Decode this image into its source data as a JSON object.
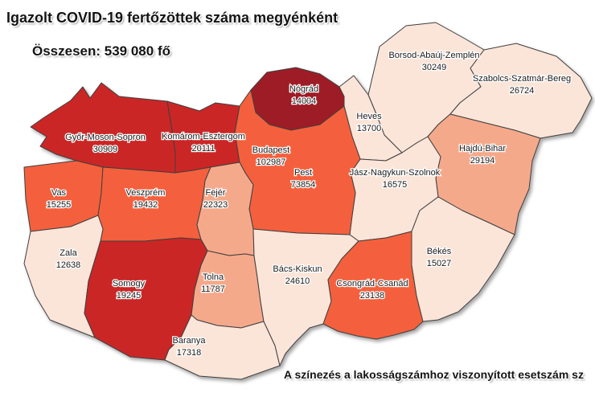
{
  "header": {
    "title": "Igazolt COVID-19 fertőzöttek száma megyénként",
    "subtitle": "Összesen: 539 080 fő"
  },
  "footnote": "A színezés a lakosságszámhoz viszonyított esetszám sz",
  "palette": {
    "level1": "#fbe4d8",
    "level2": "#f5a98b",
    "level3": "#f4603c",
    "level4": "#cb2527",
    "level5": "#9e1b26",
    "border": "#3f3f3f",
    "background": "#ffffff",
    "label_color": "#1a1a1a"
  },
  "counties": [
    {
      "id": "gyor-moson-sopron",
      "name": "Győr-Moson-Sopron",
      "value": "30909",
      "level": 4
    },
    {
      "id": "komarom-esztergom",
      "name": "Komárom-Esztergom",
      "value": "20111",
      "level": 4
    },
    {
      "id": "nograd",
      "name": "Nógrád",
      "value": "14004",
      "level": 5
    },
    {
      "id": "borsod-abauj-zemplen",
      "name": "Borsod-Abaúj-Zemplén",
      "value": "30249",
      "level": 1
    },
    {
      "id": "szabolcs-szatmar-bereg",
      "name": "Szabolcs-Szatmár-Bereg",
      "value": "26724",
      "level": 1
    },
    {
      "id": "heves",
      "name": "Heves",
      "value": "13700",
      "level": 1
    },
    {
      "id": "hajdu-bihar",
      "name": "Hajdú-Bihar",
      "value": "29194",
      "level": 2
    },
    {
      "id": "jasz-nagykun-szolnok",
      "name": "Jász-Nagykun-Szolnok",
      "value": "16575",
      "level": 1
    },
    {
      "id": "budapest",
      "name": "Budapest",
      "value": "102987",
      "level": 3
    },
    {
      "id": "pest",
      "name": "Pest",
      "value": "73854",
      "level": 3
    },
    {
      "id": "vas",
      "name": "Vas",
      "value": "15255",
      "level": 3
    },
    {
      "id": "veszprem",
      "name": "Veszprém",
      "value": "19432",
      "level": 3
    },
    {
      "id": "fejer",
      "name": "Fejér",
      "value": "22323",
      "level": 2
    },
    {
      "id": "zala",
      "name": "Zala",
      "value": "12638",
      "level": 1
    },
    {
      "id": "somogy",
      "name": "Somogy",
      "value": "19245",
      "level": 4
    },
    {
      "id": "tolna",
      "name": "Tolna",
      "value": "11787",
      "level": 2
    },
    {
      "id": "baranya",
      "name": "Baranya",
      "value": "17318",
      "level": 1
    },
    {
      "id": "bacs-kiskun",
      "name": "Bács-Kiskun",
      "value": "24610",
      "level": 1
    },
    {
      "id": "csongrad-csanad",
      "name": "Csongrád-Csanád",
      "value": "23138",
      "level": 3
    },
    {
      "id": "bekes",
      "name": "Békés",
      "value": "15027",
      "level": 1
    }
  ],
  "chart_data": {
    "type": "choropleth_map",
    "title": "Igazolt COVID-19 fertőzöttek száma megyénként",
    "total_label": "Összesen: 539 080 fő",
    "total_value": 539080,
    "unit": "fő",
    "note": "A színezés a lakosságszámhoz viszonyított esetszám sz",
    "regions": [
      {
        "name": "Győr-Moson-Sopron",
        "value": 30909
      },
      {
        "name": "Komárom-Esztergom",
        "value": 20111
      },
      {
        "name": "Nógrád",
        "value": 14004
      },
      {
        "name": "Borsod-Abaúj-Zemplén",
        "value": 30249
      },
      {
        "name": "Szabolcs-Szatmár-Bereg",
        "value": 26724
      },
      {
        "name": "Heves",
        "value": 13700
      },
      {
        "name": "Hajdú-Bihar",
        "value": 29194
      },
      {
        "name": "Jász-Nagykun-Szolnok",
        "value": 16575
      },
      {
        "name": "Budapest",
        "value": 102987
      },
      {
        "name": "Pest",
        "value": 73854
      },
      {
        "name": "Vas",
        "value": 15255
      },
      {
        "name": "Veszprém",
        "value": 19432
      },
      {
        "name": "Fejér",
        "value": 22323
      },
      {
        "name": "Zala",
        "value": 12638
      },
      {
        "name": "Somogy",
        "value": 19245
      },
      {
        "name": "Tolna",
        "value": 11787
      },
      {
        "name": "Baranya",
        "value": 17318
      },
      {
        "name": "Bács-Kiskun",
        "value": 24610
      },
      {
        "name": "Csongrád-Csanád",
        "value": 23138
      },
      {
        "name": "Békés",
        "value": 15027
      }
    ]
  }
}
